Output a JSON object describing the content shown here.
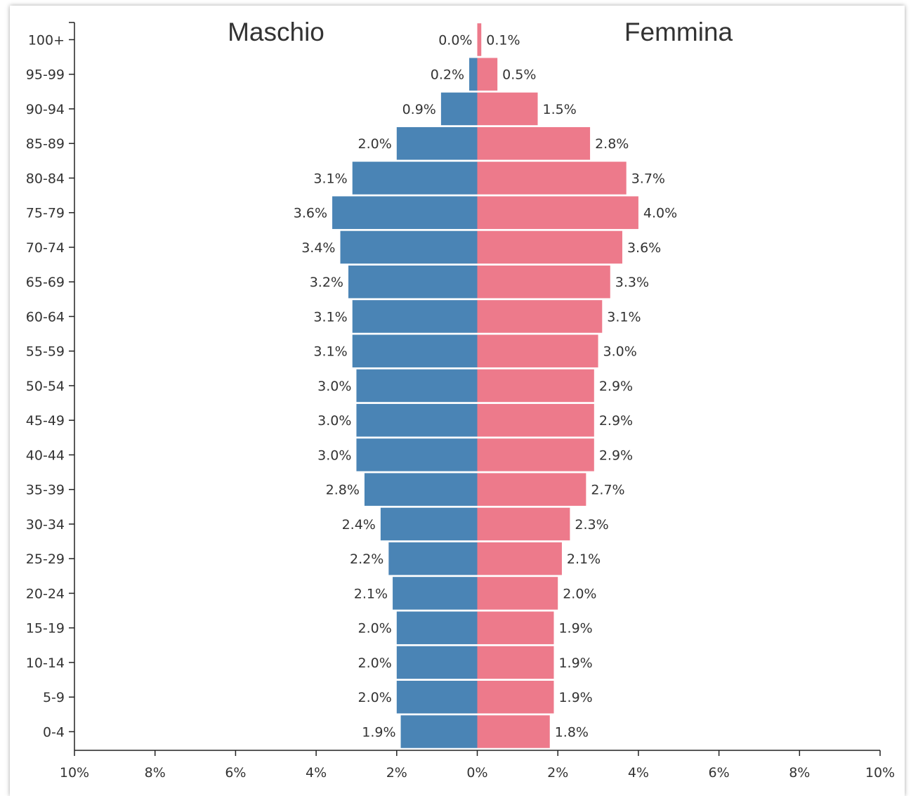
{
  "chart_data": {
    "type": "bar",
    "subtype": "population-pyramid",
    "categories": [
      "100+",
      "95-99",
      "90-94",
      "85-89",
      "80-84",
      "75-79",
      "70-74",
      "65-69",
      "60-64",
      "55-59",
      "50-54",
      "45-49",
      "40-44",
      "35-39",
      "30-34",
      "25-29",
      "20-24",
      "15-19",
      "10-14",
      "5-9",
      "0-4"
    ],
    "series": [
      {
        "name": "Maschio",
        "color": "#4A84B5",
        "values": [
          0.0,
          0.2,
          0.9,
          2.0,
          3.1,
          3.6,
          3.4,
          3.2,
          3.1,
          3.1,
          3.0,
          3.0,
          3.0,
          2.8,
          2.4,
          2.2,
          2.1,
          2.0,
          2.0,
          2.0,
          1.9
        ],
        "labels": [
          "0.0%",
          "0.2%",
          "0.9%",
          "2.0%",
          "3.1%",
          "3.6%",
          "3.4%",
          "3.2%",
          "3.1%",
          "3.1%",
          "3.0%",
          "3.0%",
          "3.0%",
          "2.8%",
          "2.4%",
          "2.2%",
          "2.1%",
          "2.0%",
          "2.0%",
          "2.0%",
          "1.9%"
        ]
      },
      {
        "name": "Femmina",
        "color": "#ED7A8B",
        "values": [
          0.1,
          0.5,
          1.5,
          2.8,
          3.7,
          4.0,
          3.6,
          3.3,
          3.1,
          3.0,
          2.9,
          2.9,
          2.9,
          2.7,
          2.3,
          2.1,
          2.0,
          1.9,
          1.9,
          1.9,
          1.8
        ],
        "labels": [
          "0.1%",
          "0.5%",
          "1.5%",
          "2.8%",
          "3.7%",
          "4.0%",
          "3.6%",
          "3.3%",
          "3.1%",
          "3.0%",
          "2.9%",
          "2.9%",
          "2.9%",
          "2.7%",
          "2.3%",
          "2.1%",
          "2.0%",
          "1.9%",
          "1.9%",
          "1.9%",
          "1.8%"
        ]
      }
    ],
    "xlim": [
      -10,
      10
    ],
    "xticks": [
      -10,
      -8,
      -6,
      -4,
      -2,
      0,
      2,
      4,
      6,
      8,
      10
    ],
    "xtick_labels": [
      "10%",
      "8%",
      "6%",
      "4%",
      "2%",
      "0%",
      "2%",
      "4%",
      "6%",
      "8%",
      "10%"
    ],
    "grid": false,
    "legend": "none"
  }
}
